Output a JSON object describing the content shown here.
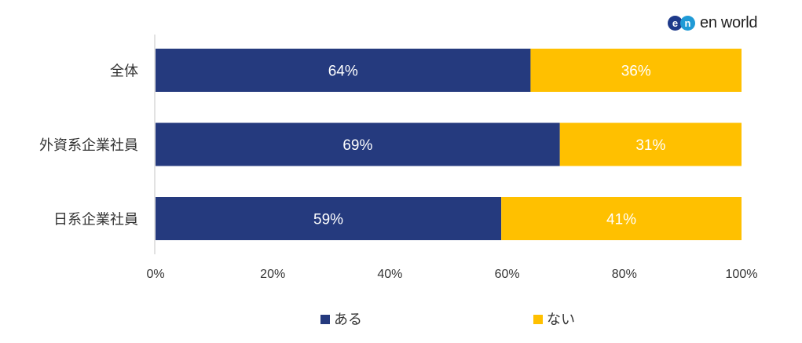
{
  "logo": {
    "text": "en world",
    "mark_e": "e",
    "mark_n": "n"
  },
  "colors": {
    "aru": "#253a7e",
    "nai": "#ffc000",
    "axis": "#d9d9d9"
  },
  "chart_data": {
    "type": "bar",
    "orientation": "horizontal",
    "stacked": true,
    "categories": [
      "全体",
      "外資系企業社員",
      "日系企業社員"
    ],
    "series": [
      {
        "name": "ある",
        "values": [
          64,
          69,
          59
        ],
        "labels": [
          "64%",
          "69%",
          "59%"
        ]
      },
      {
        "name": "ない",
        "values": [
          36,
          31,
          41
        ],
        "labels": [
          "36%",
          "31%",
          "41%"
        ]
      }
    ],
    "xlim": [
      0,
      100
    ],
    "xticks": [
      "0%",
      "20%",
      "40%",
      "60%",
      "80%",
      "100%"
    ],
    "grid": false,
    "legend_position": "bottom"
  }
}
